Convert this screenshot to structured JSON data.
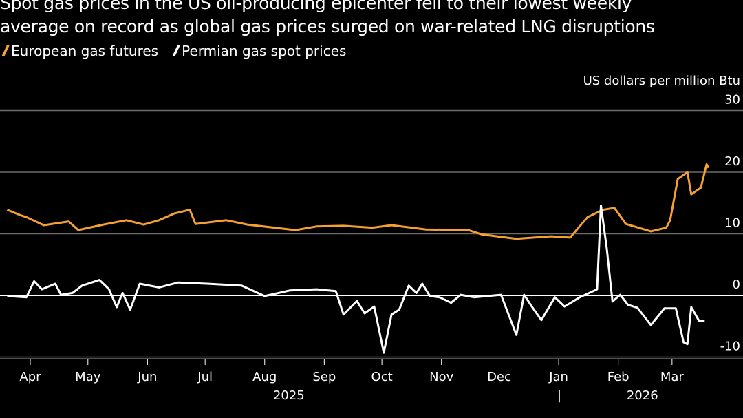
{
  "title": "Spot gas prices in the US oil-producing epicenter fell to their lowest weekly average on record as global gas prices surged on war-related LNG disruptions",
  "title_lines": [
    "Spot gas prices in the US oil-producing epicenter fell to their lowest weekly",
    "average on record as global gas prices surged on war-related LNG disruptions"
  ],
  "chart_data": {
    "type": "line",
    "ylabel": "US dollars per million Btu",
    "ylim": [
      -10,
      30
    ],
    "yticks": [
      30,
      20,
      10,
      0,
      -10
    ],
    "grid": true,
    "legend_placement": "top-left",
    "xticks": [
      {
        "date": "2025-04-01",
        "label": "Apr"
      },
      {
        "date": "2025-05-01",
        "label": "May"
      },
      {
        "date": "2025-06-01",
        "label": "Jun"
      },
      {
        "date": "2025-07-01",
        "label": "Jul"
      },
      {
        "date": "2025-08-01",
        "label": "Aug"
      },
      {
        "date": "2025-09-01",
        "label": "Sep"
      },
      {
        "date": "2025-10-01",
        "label": "Oct"
      },
      {
        "date": "2025-11-01",
        "label": "Nov"
      },
      {
        "date": "2025-12-01",
        "label": "Dec"
      },
      {
        "date": "2026-01-01",
        "label": "Jan"
      },
      {
        "date": "2026-02-01",
        "label": "Feb"
      },
      {
        "date": "2026-03-01",
        "label": "Mar"
      }
    ],
    "year_labels": [
      {
        "date": "2025-08-15",
        "label": "2025"
      },
      {
        "date": "2026-02-15",
        "label": "2026"
      }
    ],
    "year_separator": "|",
    "series": [
      {
        "name": "European gas futures",
        "color": "#f5a033",
        "points": [
          [
            "2025-03-20",
            13.9
          ],
          [
            "2025-03-27",
            13.0
          ],
          [
            "2025-03-30",
            12.7
          ],
          [
            "2025-04-08",
            11.4
          ],
          [
            "2025-04-21",
            12.0
          ],
          [
            "2025-04-26",
            10.6
          ],
          [
            "2025-05-09",
            11.5
          ],
          [
            "2025-05-21",
            12.2
          ],
          [
            "2025-05-30",
            11.5
          ],
          [
            "2025-06-07",
            12.2
          ],
          [
            "2025-06-15",
            13.3
          ],
          [
            "2025-06-23",
            13.9
          ],
          [
            "2025-06-26",
            11.6
          ],
          [
            "2025-07-12",
            12.2
          ],
          [
            "2025-07-23",
            11.5
          ],
          [
            "2025-08-17",
            10.6
          ],
          [
            "2025-08-28",
            11.2
          ],
          [
            "2025-09-11",
            11.3
          ],
          [
            "2025-09-26",
            11.0
          ],
          [
            "2025-10-06",
            11.4
          ],
          [
            "2025-10-24",
            10.7
          ],
          [
            "2025-11-15",
            10.6
          ],
          [
            "2025-11-22",
            9.9
          ],
          [
            "2025-12-10",
            9.2
          ],
          [
            "2025-12-28",
            9.6
          ],
          [
            "2026-01-07",
            9.4
          ],
          [
            "2026-01-16",
            12.7
          ],
          [
            "2026-01-24",
            13.9
          ],
          [
            "2026-01-30",
            14.2
          ],
          [
            "2026-02-05",
            11.6
          ],
          [
            "2026-02-18",
            10.4
          ],
          [
            "2026-02-26",
            11.0
          ],
          [
            "2026-02-28",
            12.2
          ],
          [
            "2026-03-04",
            18.9
          ],
          [
            "2026-03-09",
            20.0
          ],
          [
            "2026-03-11",
            16.4
          ],
          [
            "2026-03-16",
            17.5
          ],
          [
            "2026-03-19",
            21.3
          ],
          [
            "2026-03-20",
            20.7
          ]
        ]
      },
      {
        "name": "Permian gas spot prices",
        "color": "#ffffff",
        "points": [
          [
            "2025-03-20",
            -0.1
          ],
          [
            "2025-03-30",
            -0.3
          ],
          [
            "2025-04-03",
            2.3
          ],
          [
            "2025-04-07",
            1.0
          ],
          [
            "2025-04-14",
            1.9
          ],
          [
            "2025-04-17",
            0.1
          ],
          [
            "2025-04-23",
            0.4
          ],
          [
            "2025-04-28",
            1.6
          ],
          [
            "2025-05-07",
            2.5
          ],
          [
            "2025-05-12",
            1.0
          ],
          [
            "2025-05-16",
            -1.9
          ],
          [
            "2025-05-19",
            0.4
          ],
          [
            "2025-05-23",
            -2.3
          ],
          [
            "2025-05-28",
            1.9
          ],
          [
            "2025-06-07",
            1.3
          ],
          [
            "2025-06-17",
            2.1
          ],
          [
            "2025-07-02",
            1.9
          ],
          [
            "2025-07-20",
            1.6
          ],
          [
            "2025-08-01",
            -0.1
          ],
          [
            "2025-08-14",
            0.8
          ],
          [
            "2025-08-28",
            1.0
          ],
          [
            "2025-09-07",
            0.7
          ],
          [
            "2025-09-11",
            -3.1
          ],
          [
            "2025-09-18",
            -0.9
          ],
          [
            "2025-09-22",
            -2.9
          ],
          [
            "2025-09-27",
            -1.8
          ],
          [
            "2025-10-02",
            -9.3
          ],
          [
            "2025-10-06",
            -3.1
          ],
          [
            "2025-10-10",
            -2.3
          ],
          [
            "2025-10-15",
            1.6
          ],
          [
            "2025-10-19",
            0.4
          ],
          [
            "2025-10-22",
            1.9
          ],
          [
            "2025-10-26",
            -0.1
          ],
          [
            "2025-10-31",
            -0.3
          ],
          [
            "2025-11-06",
            -1.2
          ],
          [
            "2025-11-11",
            0.1
          ],
          [
            "2025-11-18",
            -0.3
          ],
          [
            "2025-11-25",
            -0.1
          ],
          [
            "2025-12-02",
            0.1
          ],
          [
            "2025-12-10",
            -6.4
          ],
          [
            "2025-12-14",
            0.1
          ],
          [
            "2025-12-18",
            -1.8
          ],
          [
            "2025-12-23",
            -4.0
          ],
          [
            "2025-12-30",
            -0.3
          ],
          [
            "2026-01-04",
            -1.8
          ],
          [
            "2026-01-12",
            -0.3
          ],
          [
            "2026-01-21",
            1.0
          ],
          [
            "2026-01-23",
            14.6
          ],
          [
            "2026-01-26",
            7.7
          ],
          [
            "2026-01-29",
            -1.0
          ],
          [
            "2026-02-02",
            0.1
          ],
          [
            "2026-02-06",
            -1.5
          ],
          [
            "2026-02-11",
            -2.0
          ],
          [
            "2026-02-18",
            -4.8
          ],
          [
            "2026-02-25",
            -2.1
          ],
          [
            "2026-03-03",
            -2.1
          ],
          [
            "2026-03-07",
            -7.6
          ],
          [
            "2026-03-09",
            -7.9
          ],
          [
            "2026-03-11",
            -1.9
          ],
          [
            "2026-03-15",
            -4.1
          ],
          [
            "2026-03-18",
            -4.1
          ]
        ]
      }
    ]
  }
}
